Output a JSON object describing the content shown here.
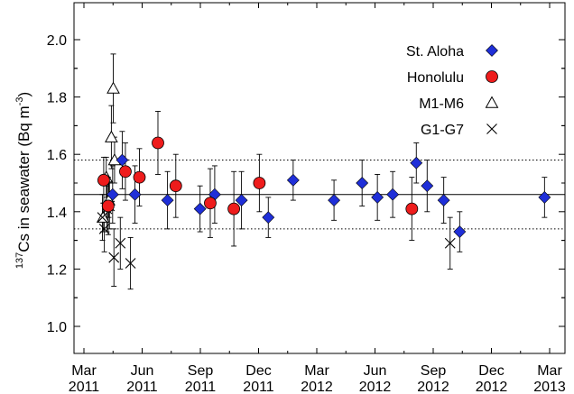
{
  "chart_data": {
    "type": "scatter",
    "title": "",
    "ylabel": {
      "pre": "",
      "sup1": "137",
      "mid": "Cs in seawater (Bq m",
      "sup2": "-3",
      "post": ")"
    },
    "xlabel": "",
    "x_ticks": [
      {
        "line1": "Mar",
        "line2": "2011",
        "month": 0
      },
      {
        "line1": "Jun",
        "line2": "2011",
        "month": 3
      },
      {
        "line1": "Sep",
        "line2": "2011",
        "month": 6
      },
      {
        "line1": "Dec",
        "line2": "2011",
        "month": 9
      },
      {
        "line1": "Mar",
        "line2": "2012",
        "month": 12
      },
      {
        "line1": "Jun",
        "line2": "2012",
        "month": 15
      },
      {
        "line1": "Sep",
        "line2": "2012",
        "month": 18
      },
      {
        "line1": "Dec",
        "line2": "2012",
        "month": 21
      },
      {
        "line1": "Mar",
        "line2": "2013",
        "month": 24
      }
    ],
    "y_ticks": [
      "1.0",
      "1.2",
      "1.4",
      "1.6",
      "1.8",
      "2.0"
    ],
    "ylim": [
      0.9,
      2.1
    ],
    "reference_lines": [
      {
        "label": "mean",
        "y": 1.46,
        "style": "solid"
      },
      {
        "label": "upper",
        "y": 1.58,
        "style": "dotted"
      },
      {
        "label": "lower",
        "y": 1.34,
        "style": "dotted"
      }
    ],
    "legend_position": "top-right",
    "series": [
      {
        "name": "St. Aloha",
        "marker": "diamond",
        "color": "#1f2fd8",
        "points": [
          {
            "x": "2011-04-15",
            "y": 1.46,
            "err": 0.1
          },
          {
            "x": "2011-04-30",
            "y": 1.58,
            "err": 0.1
          },
          {
            "x": "2011-05-20",
            "y": 1.46,
            "err": 0.1
          },
          {
            "x": "2011-07-10",
            "y": 1.44,
            "err": 0.1
          },
          {
            "x": "2011-08-30",
            "y": 1.41,
            "err": 0.08
          },
          {
            "x": "2011-09-22",
            "y": 1.46,
            "err": 0.1
          },
          {
            "x": "2011-11-03",
            "y": 1.44,
            "err": 0.1
          },
          {
            "x": "2011-12-15",
            "y": 1.38,
            "err": 0.07
          },
          {
            "x": "2012-01-23",
            "y": 1.51,
            "err": 0.07
          },
          {
            "x": "2012-03-27",
            "y": 1.44,
            "err": 0.07
          },
          {
            "x": "2012-05-10",
            "y": 1.5,
            "err": 0.08
          },
          {
            "x": "2012-06-03",
            "y": 1.45,
            "err": 0.08
          },
          {
            "x": "2012-06-27",
            "y": 1.46,
            "err": 0.08
          },
          {
            "x": "2012-08-03",
            "y": 1.57,
            "err": 0.07
          },
          {
            "x": "2012-08-20",
            "y": 1.49,
            "err": 0.09
          },
          {
            "x": "2012-09-15",
            "y": 1.44,
            "err": 0.08
          },
          {
            "x": "2012-10-10",
            "y": 1.33,
            "err": 0.07
          },
          {
            "x": "2013-02-20",
            "y": 1.45,
            "err": 0.07
          }
        ]
      },
      {
        "name": "Honolulu",
        "marker": "circle",
        "color": "#ee1c1c",
        "points": [
          {
            "x": "2011-04-01",
            "y": 1.51,
            "err": 0.08
          },
          {
            "x": "2011-04-08",
            "y": 1.42,
            "err": 0.1
          },
          {
            "x": "2011-05-05",
            "y": 1.54,
            "err": 0.1
          },
          {
            "x": "2011-05-27",
            "y": 1.52,
            "err": 0.1
          },
          {
            "x": "2011-06-25",
            "y": 1.64,
            "err": 0.11
          },
          {
            "x": "2011-07-23",
            "y": 1.49,
            "err": 0.11
          },
          {
            "x": "2011-09-15",
            "y": 1.43,
            "err": 0.12
          },
          {
            "x": "2011-10-22",
            "y": 1.41,
            "err": 0.13
          },
          {
            "x": "2011-12-01",
            "y": 1.5,
            "err": 0.1
          },
          {
            "x": "2012-07-27",
            "y": 1.41,
            "err": 0.11
          }
        ]
      },
      {
        "name": "M1-M6",
        "marker": "triangle-open",
        "color": "#000000",
        "points": [
          {
            "x": "2011-03-31",
            "y": 1.38,
            "err": 0.05
          },
          {
            "x": "2011-04-05",
            "y": 1.52,
            "err": 0.07
          },
          {
            "x": "2011-04-09",
            "y": 1.44,
            "err": 0.06
          },
          {
            "x": "2011-04-13",
            "y": 1.66,
            "err": 0.11
          },
          {
            "x": "2011-04-16",
            "y": 1.83,
            "err": 0.12
          },
          {
            "x": "2011-04-18",
            "y": 1.58,
            "err": 0.08
          }
        ]
      },
      {
        "name": "G1-G7",
        "marker": "cross",
        "color": "#000000",
        "points": [
          {
            "x": "2011-03-30",
            "y": 1.38,
            "err": 0.08
          },
          {
            "x": "2011-04-02",
            "y": 1.34,
            "err": 0.08
          },
          {
            "x": "2011-04-06",
            "y": 1.41,
            "err": 0.08
          },
          {
            "x": "2011-04-10",
            "y": 1.42,
            "err": 0.08
          },
          {
            "x": "2011-04-17",
            "y": 1.24,
            "err": 0.1
          },
          {
            "x": "2011-04-27",
            "y": 1.29,
            "err": 0.09
          },
          {
            "x": "2011-05-13",
            "y": 1.22,
            "err": 0.09
          },
          {
            "x": "2012-09-25",
            "y": 1.29,
            "err": 0.09
          }
        ]
      }
    ]
  }
}
